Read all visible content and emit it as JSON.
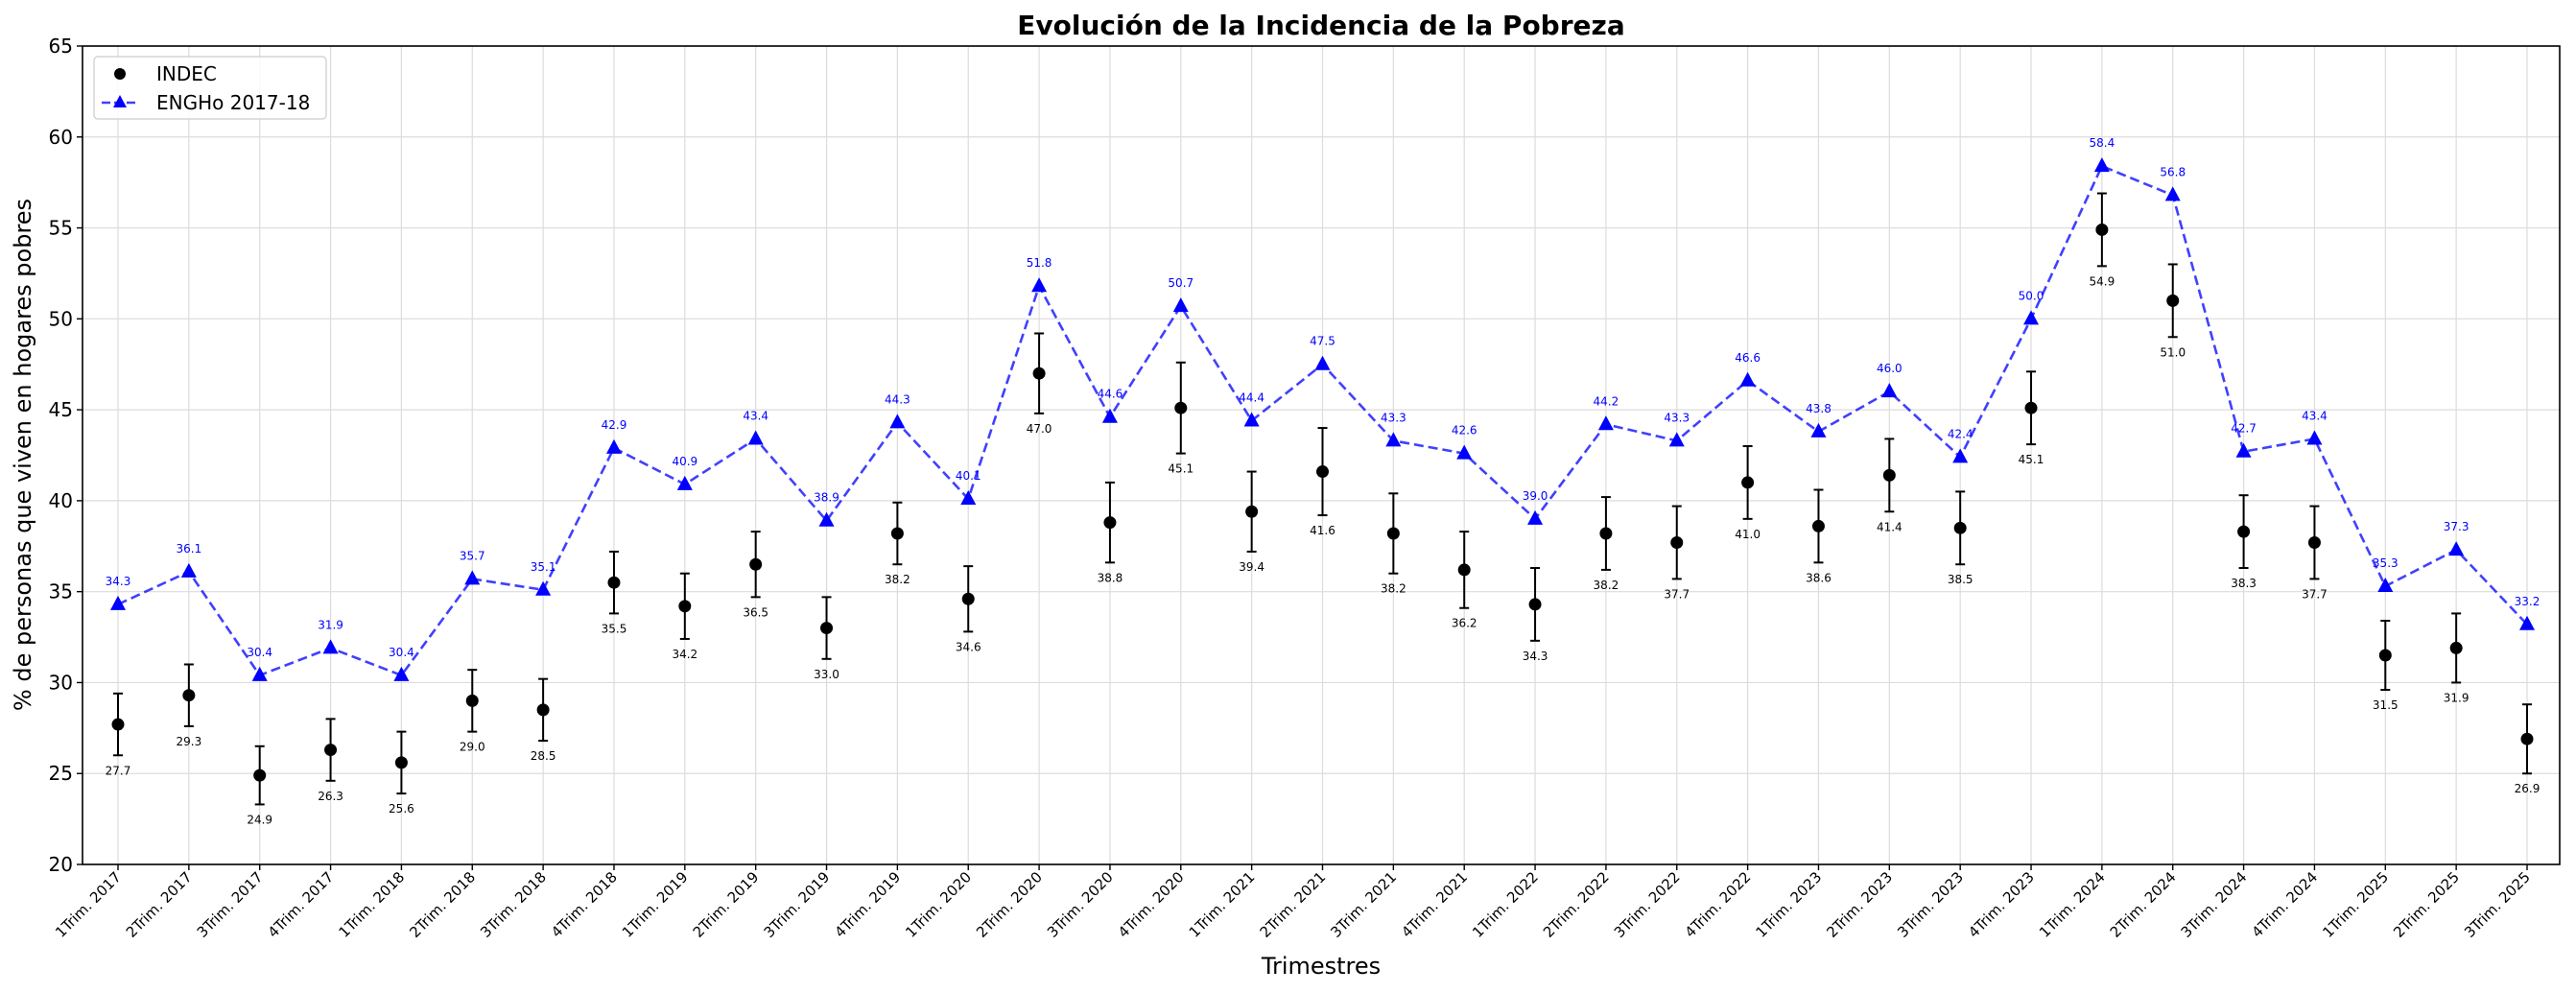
{
  "chart_data": {
    "type": "line",
    "title": "Evolución de la Incidencia de la Pobreza",
    "xlabel": "Trimestres",
    "ylabel": "% de personas que viven en hogares pobres",
    "ylim": [
      20,
      65
    ],
    "yticks": [
      20,
      25,
      30,
      35,
      40,
      45,
      50,
      55,
      60,
      65
    ],
    "grid": true,
    "legend_position": "top-left",
    "categories": [
      "1Trim. 2017",
      "2Trim. 2017",
      "3Trim. 2017",
      "4Trim. 2017",
      "1Trim. 2018",
      "2Trim. 2018",
      "3Trim. 2018",
      "4Trim. 2018",
      "1Trim. 2019",
      "2Trim. 2019",
      "3Trim. 2019",
      "4Trim. 2019",
      "1Trim. 2020",
      "2Trim. 2020",
      "3Trim. 2020",
      "4Trim. 2020",
      "1Trim. 2021",
      "2Trim. 2021",
      "3Trim. 2021",
      "4Trim. 2021",
      "1Trim. 2022",
      "2Trim. 2022",
      "3Trim. 2022",
      "4Trim. 2022",
      "1Trim. 2023",
      "2Trim. 2023",
      "3Trim. 2023",
      "4Trim. 2023",
      "1Trim. 2024",
      "2Trim. 2024",
      "3Trim. 2024",
      "4Trim. 2024",
      "1Trim. 2025",
      "2Trim. 2025",
      "3Trim. 2025"
    ],
    "series": [
      {
        "name": "INDEC",
        "marker": "circle",
        "color": "#000000",
        "values": [
          27.7,
          29.3,
          24.9,
          26.3,
          25.6,
          29.0,
          28.5,
          35.5,
          34.2,
          36.5,
          33.0,
          38.2,
          34.6,
          47.0,
          38.8,
          45.1,
          39.4,
          41.6,
          38.2,
          36.2,
          34.3,
          38.2,
          37.7,
          41.0,
          38.6,
          41.4,
          38.5,
          45.1,
          54.9,
          51.0,
          38.3,
          37.7,
          31.5,
          31.9,
          26.9
        ],
        "error": [
          1.7,
          1.7,
          1.6,
          1.7,
          1.7,
          1.7,
          1.7,
          1.7,
          1.8,
          1.8,
          1.7,
          1.7,
          1.8,
          2.2,
          2.2,
          2.5,
          2.2,
          2.4,
          2.2,
          2.1,
          2.0,
          2.0,
          2.0,
          2.0,
          2.0,
          2.0,
          2.0,
          2.0,
          2.0,
          2.0,
          2.0,
          2.0,
          1.9,
          1.9,
          1.9
        ]
      },
      {
        "name": "ENGHo 2017-18",
        "marker": "triangle",
        "line": "dashed",
        "color": "#0000ff",
        "values": [
          34.3,
          36.1,
          30.4,
          31.9,
          30.4,
          35.7,
          35.1,
          42.9,
          40.9,
          43.4,
          38.9,
          44.3,
          40.1,
          51.8,
          44.6,
          50.7,
          44.4,
          47.5,
          43.3,
          42.6,
          39.0,
          44.2,
          43.3,
          46.6,
          43.8,
          46.0,
          42.4,
          50.0,
          58.4,
          56.8,
          42.7,
          43.4,
          35.3,
          37.3,
          33.2
        ]
      }
    ]
  }
}
